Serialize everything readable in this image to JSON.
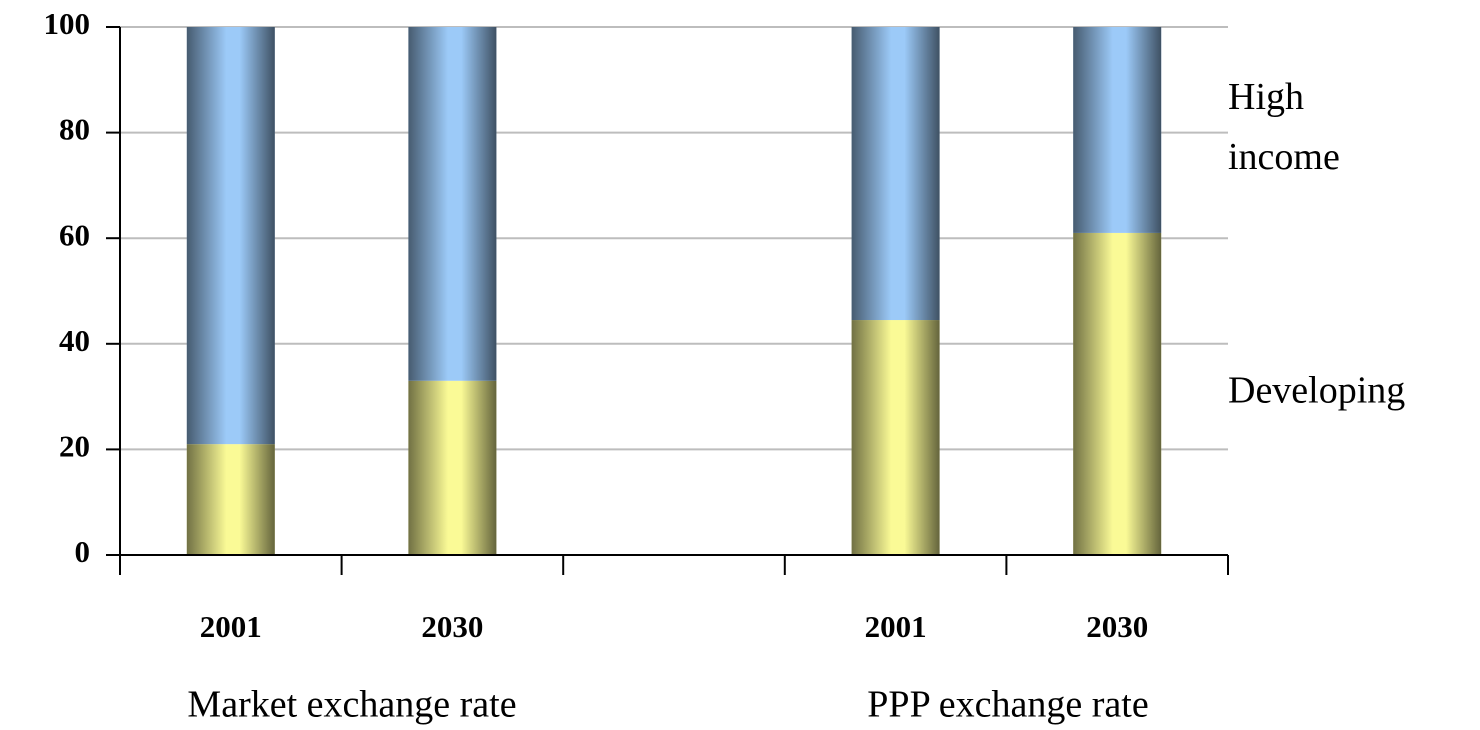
{
  "chart_data": {
    "type": "stacked_bar",
    "categories": [
      "2001",
      "2030",
      null,
      "2001",
      "2030"
    ],
    "group_labels": [
      "Market exchange rate",
      "PPP exchange rate"
    ],
    "series": [
      {
        "name": "Developing",
        "color": "#fafa96",
        "values": [
          21,
          33,
          0,
          44.5,
          61
        ]
      },
      {
        "name": "High income",
        "color": "#9ccaf8",
        "values": [
          79,
          67,
          0,
          55.5,
          39
        ]
      }
    ],
    "ylim": [
      0,
      100
    ],
    "yticks": [
      0,
      20,
      40,
      60,
      80,
      100
    ],
    "grid": true
  }
}
